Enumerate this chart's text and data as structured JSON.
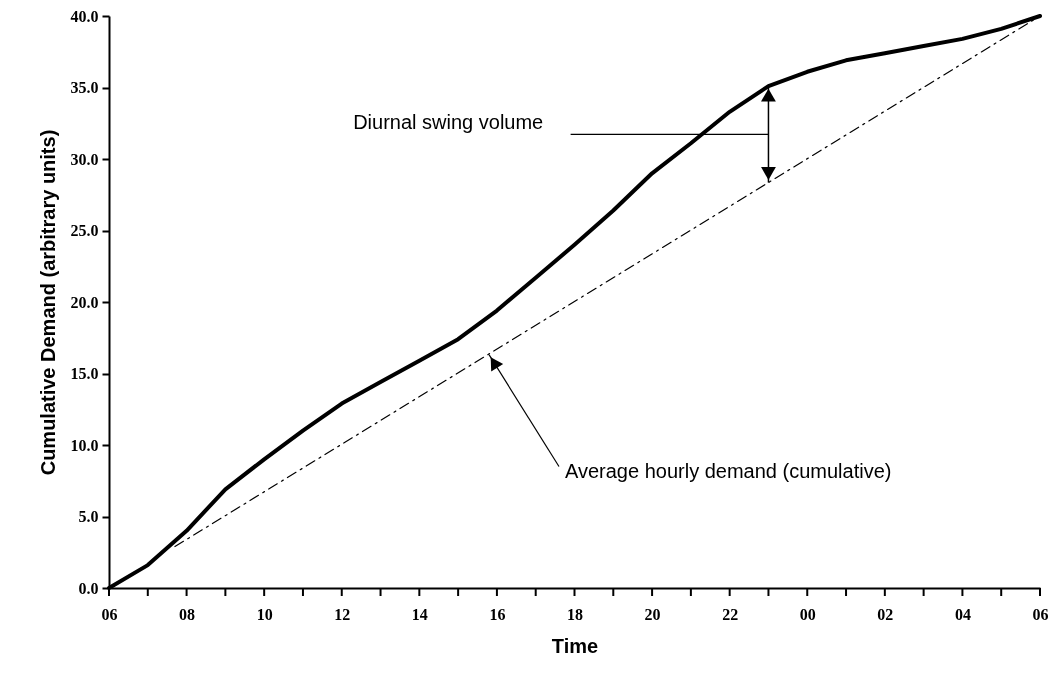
{
  "chart_data": {
    "type": "line",
    "xlabel": "Time",
    "ylabel": "Cumulative Demand (arbitrary units)",
    "x": [
      6,
      7,
      8,
      9,
      10,
      11,
      12,
      13,
      14,
      15,
      16,
      17,
      18,
      19,
      20,
      21,
      22,
      23,
      24,
      25,
      26,
      27,
      28,
      29,
      30
    ],
    "series": [
      {
        "color": "#000000",
        "line_style": "solid",
        "values": [
          0,
          1.6,
          4.0,
          6.9,
          9.0,
          11.0,
          12.9,
          14.4,
          15.9,
          17.4,
          19.4,
          21.7,
          24.0,
          26.4,
          29.0,
          31.1,
          33.3,
          35.1,
          36.1,
          36.9,
          37.4,
          37.9,
          38.4,
          39.1,
          40.0
        ]
      },
      {
        "type": "line",
        "color": "#000000",
        "line_style": "dashed",
        "x": [
          7.7,
          30
        ],
        "values": [
          2.9,
          40
        ]
      }
    ],
    "xlim": [
      6,
      30
    ],
    "ylim": [
      0,
      40
    ],
    "xticks": [
      {
        "value": 6,
        "label": "06"
      },
      {
        "value": 7,
        "label": null
      },
      {
        "value": 8,
        "label": "08"
      },
      {
        "value": 9,
        "label": null
      },
      {
        "value": 10,
        "label": "10"
      },
      {
        "value": 11,
        "label": null
      },
      {
        "value": 12,
        "label": "12"
      },
      {
        "value": 13,
        "label": null
      },
      {
        "value": 14,
        "label": "14"
      },
      {
        "value": 15,
        "label": null
      },
      {
        "value": 16,
        "label": "16"
      },
      {
        "value": 17,
        "label": null
      },
      {
        "value": 18,
        "label": "18"
      },
      {
        "value": 19,
        "label": null
      },
      {
        "value": 20,
        "label": "20"
      },
      {
        "value": 21,
        "label": null
      },
      {
        "value": 22,
        "label": "22"
      },
      {
        "value": 23,
        "label": null
      },
      {
        "value": 24,
        "label": "00"
      },
      {
        "value": 25,
        "label": null
      },
      {
        "value": 26,
        "label": "02"
      },
      {
        "value": 27,
        "label": null
      },
      {
        "value": 28,
        "label": "04"
      },
      {
        "value": 29,
        "label": null
      },
      {
        "value": 30,
        "label": "06"
      }
    ],
    "yticks": [
      {
        "value": 0,
        "label": "0.0"
      },
      {
        "value": 5,
        "label": "5.0"
      },
      {
        "value": 10,
        "label": "10.0"
      },
      {
        "value": 15,
        "label": "15.0"
      },
      {
        "value": 20,
        "label": "20.0"
      },
      {
        "value": 25,
        "label": "25.0"
      },
      {
        "value": 30,
        "label": "30.0"
      },
      {
        "value": 35,
        "label": "35.0"
      },
      {
        "value": 40,
        "label": "40.0"
      }
    ],
    "annotations": [
      "Diurnal swing volume",
      {
        "text": "Average hourly demand (cumulative)",
        "x": 15.8,
        "y": 16.3
      }
    ]
  }
}
